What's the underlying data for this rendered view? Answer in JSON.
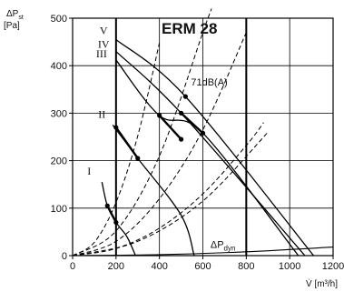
{
  "chart_data": {
    "type": "line",
    "title": "ERM 28",
    "ylabel_main": "ΔP",
    "ylabel_sub": "st",
    "ylabel_unit": "[Pa]",
    "xlabel": "V̇ [m³/h]",
    "xlim": [
      0,
      1200
    ],
    "ylim": [
      0,
      500
    ],
    "x_ticks": [
      0,
      200,
      400,
      600,
      800,
      1000,
      1200
    ],
    "x_tick_labels": [
      "0",
      "200",
      "400",
      "600",
      "800",
      "1000",
      "1200"
    ],
    "y_ticks": [
      0,
      100,
      200,
      300,
      400,
      500
    ],
    "y_tick_labels": [
      "0",
      "100",
      "200",
      "300",
      "400",
      "500"
    ],
    "grid": "vertical and horizontal lines at ticks",
    "thick_vertical_lines": [
      200,
      800
    ],
    "series": [
      {
        "name": "V",
        "style": "solid",
        "x": [
          200,
          520,
          1110
        ],
        "y": [
          455,
          335,
          0
        ]
      },
      {
        "name": "IV",
        "style": "solid",
        "x": [
          200,
          500,
          1070
        ],
        "y": [
          430,
          300,
          0
        ]
      },
      {
        "name": "III",
        "style": "solid",
        "x": [
          200,
          400,
          600,
          1040
        ],
        "y": [
          412,
          295,
          258,
          0
        ]
      },
      {
        "name": "II",
        "style": "solid",
        "x": [
          185,
          300,
          500,
          560
        ],
        "y": [
          275,
          205,
          85,
          0
        ]
      },
      {
        "name": "I",
        "style": "solid",
        "x": [
          135,
          160,
          200,
          250,
          290
        ],
        "y": [
          155,
          105,
          70,
          40,
          0
        ]
      }
    ],
    "system_curves": [
      {
        "style": "dashed",
        "x": [
          0,
          100,
          200,
          300,
          400
        ],
        "y": [
          0,
          28,
          112,
          252,
          448
        ]
      },
      {
        "style": "dashed",
        "x": [
          0,
          200,
          400,
          600,
          640
        ],
        "y": [
          0,
          52,
          210,
          470,
          520
        ]
      },
      {
        "style": "dashed",
        "x": [
          0,
          200,
          400,
          600,
          800
        ],
        "y": [
          0,
          30,
          120,
          265,
          470
        ]
      },
      {
        "style": "dashed",
        "x": [
          0,
          200,
          400,
          600,
          800,
          880
        ],
        "y": [
          0,
          15,
          58,
          130,
          232,
          280
        ]
      },
      {
        "style": "dashed",
        "x": [
          0,
          300,
          600,
          900
        ],
        "y": [
          0,
          30,
          115,
          260
        ]
      }
    ],
    "dyn_pressure_curve": {
      "name": "ΔP_dyn",
      "style": "solid",
      "x": [
        0,
        400,
        800,
        1200
      ],
      "y": [
        0,
        2,
        8,
        18
      ]
    },
    "operating_points": [
      {
        "x": 160,
        "y": 105
      },
      {
        "x": 200,
        "y": 70
      },
      {
        "x": 200,
        "y": 270
      },
      {
        "x": 300,
        "y": 205
      },
      {
        "x": 400,
        "y": 295
      },
      {
        "x": 500,
        "y": 245
      },
      {
        "x": 600,
        "y": 258
      },
      {
        "x": 500,
        "y": 300
      },
      {
        "x": 520,
        "y": 335
      }
    ],
    "annotations": [
      {
        "text": "71dB(A)"
      },
      {
        "text": "ΔP",
        "sub": "dyn"
      }
    ]
  }
}
